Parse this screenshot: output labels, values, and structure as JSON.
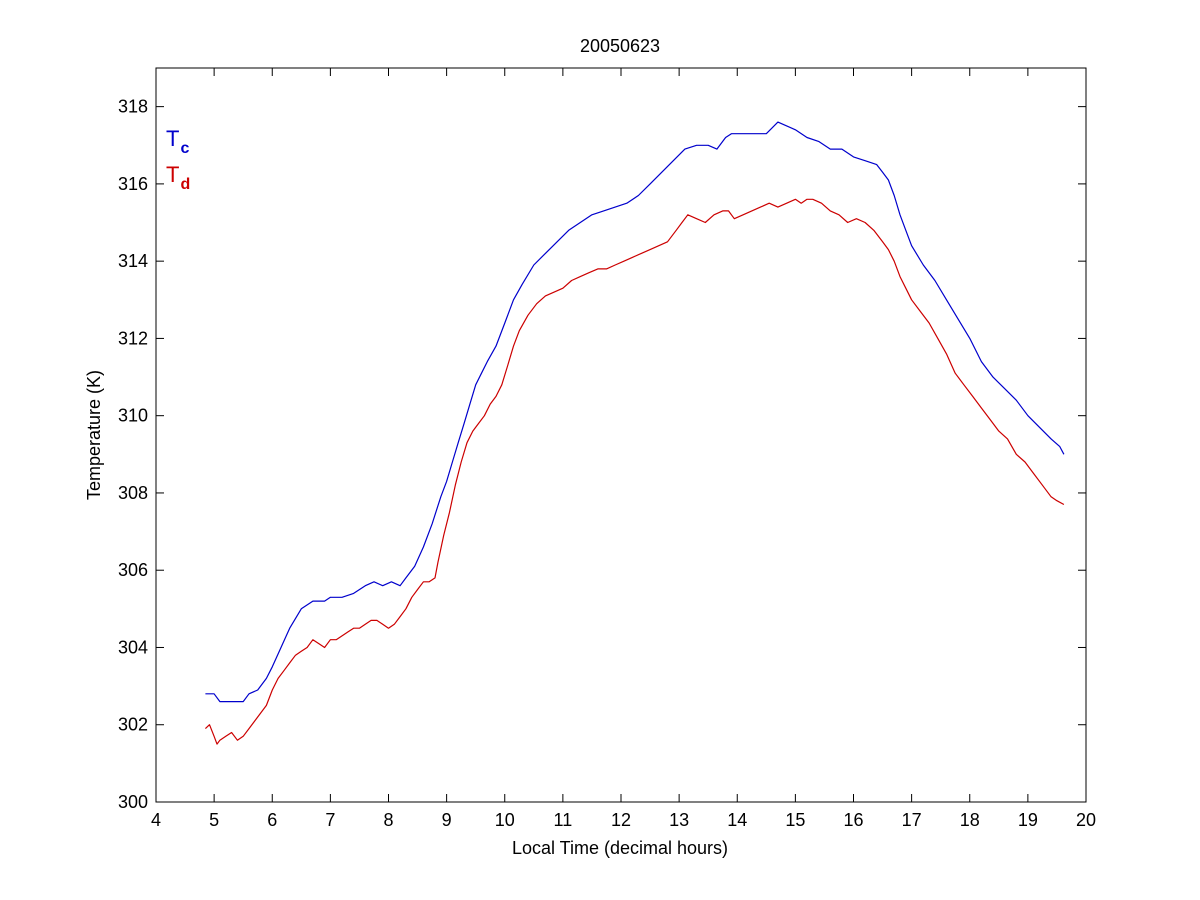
{
  "chart_data": {
    "type": "line",
    "title": "20050623",
    "xlabel": "Local Time (decimal hours)",
    "ylabel": "Temperature (K)",
    "xlim": [
      4,
      20
    ],
    "ylim": [
      300,
      319
    ],
    "xticks": [
      "4",
      "5",
      "6",
      "7",
      "8",
      "9",
      "10",
      "11",
      "12",
      "13",
      "14",
      "15",
      "16",
      "17",
      "18",
      "19",
      "20"
    ],
    "yticks": [
      "300",
      "302",
      "304",
      "306",
      "308",
      "310",
      "312",
      "314",
      "316",
      "318"
    ],
    "grid": false,
    "legend_position": "top-left",
    "series": [
      {
        "name": "Tc",
        "label_main": "T",
        "label_sub": "c",
        "color": "#0000cc",
        "x": [
          4.85,
          5.0,
          5.1,
          5.25,
          5.4,
          5.5,
          5.6,
          5.75,
          5.9,
          6.0,
          6.15,
          6.3,
          6.5,
          6.7,
          6.9,
          7.0,
          7.2,
          7.4,
          7.6,
          7.75,
          7.9,
          8.05,
          8.2,
          8.3,
          8.45,
          8.6,
          8.75,
          8.9,
          9.0,
          9.1,
          9.2,
          9.3,
          9.4,
          9.5,
          9.6,
          9.7,
          9.85,
          10.0,
          10.15,
          10.3,
          10.5,
          10.7,
          10.9,
          11.1,
          11.3,
          11.5,
          11.7,
          11.9,
          12.1,
          12.3,
          12.5,
          12.7,
          12.9,
          13.1,
          13.3,
          13.5,
          13.65,
          13.8,
          13.9,
          14.1,
          14.3,
          14.5,
          14.7,
          14.85,
          15.0,
          15.2,
          15.4,
          15.6,
          15.8,
          16.0,
          16.2,
          16.4,
          16.5,
          16.6,
          16.7,
          16.8,
          16.9,
          17.0,
          17.2,
          17.4,
          17.6,
          17.8,
          18.0,
          18.2,
          18.4,
          18.6,
          18.8,
          19.0,
          19.2,
          19.4,
          19.55,
          19.62
        ],
        "y": [
          302.8,
          302.8,
          302.6,
          302.6,
          302.6,
          302.6,
          302.8,
          302.9,
          303.2,
          303.5,
          304.0,
          304.5,
          305.0,
          305.2,
          305.2,
          305.3,
          305.3,
          305.4,
          305.6,
          305.7,
          305.6,
          305.7,
          305.6,
          305.8,
          306.1,
          306.6,
          307.2,
          307.9,
          308.3,
          308.8,
          309.3,
          309.8,
          310.3,
          310.8,
          311.1,
          311.4,
          311.8,
          312.4,
          313.0,
          313.4,
          313.9,
          314.2,
          314.5,
          314.8,
          315.0,
          315.2,
          315.3,
          315.4,
          315.5,
          315.7,
          316.0,
          316.3,
          316.6,
          316.9,
          317.0,
          317.0,
          316.9,
          317.2,
          317.3,
          317.3,
          317.3,
          317.3,
          317.6,
          317.5,
          317.4,
          317.2,
          317.1,
          316.9,
          316.9,
          316.7,
          316.6,
          316.5,
          316.3,
          316.1,
          315.7,
          315.2,
          314.8,
          314.4,
          313.9,
          313.5,
          313.0,
          312.5,
          312.0,
          311.4,
          311.0,
          310.7,
          310.4,
          310.0,
          309.7,
          309.4,
          309.2,
          309.0
        ]
      },
      {
        "name": "Td",
        "label_main": "T",
        "label_sub": "d",
        "color": "#cc0000",
        "x": [
          4.85,
          4.92,
          5.0,
          5.05,
          5.1,
          5.2,
          5.3,
          5.4,
          5.5,
          5.6,
          5.7,
          5.8,
          5.9,
          6.0,
          6.1,
          6.2,
          6.3,
          6.4,
          6.5,
          6.6,
          6.7,
          6.8,
          6.9,
          7.0,
          7.1,
          7.2,
          7.3,
          7.4,
          7.5,
          7.6,
          7.7,
          7.8,
          7.9,
          8.0,
          8.1,
          8.2,
          8.3,
          8.4,
          8.5,
          8.6,
          8.7,
          8.8,
          8.85,
          8.95,
          9.05,
          9.15,
          9.25,
          9.35,
          9.45,
          9.55,
          9.65,
          9.75,
          9.85,
          9.95,
          10.05,
          10.15,
          10.25,
          10.4,
          10.55,
          10.7,
          10.85,
          11.0,
          11.15,
          11.3,
          11.45,
          11.6,
          11.75,
          11.9,
          12.05,
          12.2,
          12.35,
          12.5,
          12.65,
          12.8,
          12.95,
          13.05,
          13.15,
          13.3,
          13.45,
          13.6,
          13.75,
          13.85,
          13.95,
          14.1,
          14.25,
          14.4,
          14.55,
          14.7,
          14.85,
          15.0,
          15.1,
          15.2,
          15.3,
          15.45,
          15.6,
          15.75,
          15.9,
          16.05,
          16.2,
          16.35,
          16.5,
          16.6,
          16.7,
          16.8,
          16.9,
          17.0,
          17.15,
          17.3,
          17.45,
          17.6,
          17.75,
          17.9,
          18.05,
          18.2,
          18.35,
          18.5,
          18.65,
          18.8,
          18.95,
          19.1,
          19.25,
          19.4,
          19.5,
          19.62
        ],
        "y": [
          301.9,
          302.0,
          301.7,
          301.5,
          301.6,
          301.7,
          301.8,
          301.6,
          301.7,
          301.9,
          302.1,
          302.3,
          302.5,
          302.9,
          303.2,
          303.4,
          303.6,
          303.8,
          303.9,
          304.0,
          304.2,
          304.1,
          304.0,
          304.2,
          304.2,
          304.3,
          304.4,
          304.5,
          304.5,
          304.6,
          304.7,
          304.7,
          304.6,
          304.5,
          304.6,
          304.8,
          305.0,
          305.3,
          305.5,
          305.7,
          305.7,
          305.8,
          306.2,
          306.9,
          307.5,
          308.2,
          308.8,
          309.3,
          309.6,
          309.8,
          310.0,
          310.3,
          310.5,
          310.8,
          311.3,
          311.8,
          312.2,
          312.6,
          312.9,
          313.1,
          313.2,
          313.3,
          313.5,
          313.6,
          313.7,
          313.8,
          313.8,
          313.9,
          314.0,
          314.1,
          314.2,
          314.3,
          314.4,
          314.5,
          314.8,
          315.0,
          315.2,
          315.1,
          315.0,
          315.2,
          315.3,
          315.3,
          315.1,
          315.2,
          315.3,
          315.4,
          315.5,
          315.4,
          315.5,
          315.6,
          315.5,
          315.6,
          315.6,
          315.5,
          315.3,
          315.2,
          315.0,
          315.1,
          315.0,
          314.8,
          314.5,
          314.3,
          314.0,
          313.6,
          313.3,
          313.0,
          312.7,
          312.4,
          312.0,
          311.6,
          311.1,
          310.8,
          310.5,
          310.2,
          309.9,
          309.6,
          309.4,
          309.0,
          308.8,
          308.5,
          308.2,
          307.9,
          307.8,
          307.7
        ]
      }
    ]
  }
}
